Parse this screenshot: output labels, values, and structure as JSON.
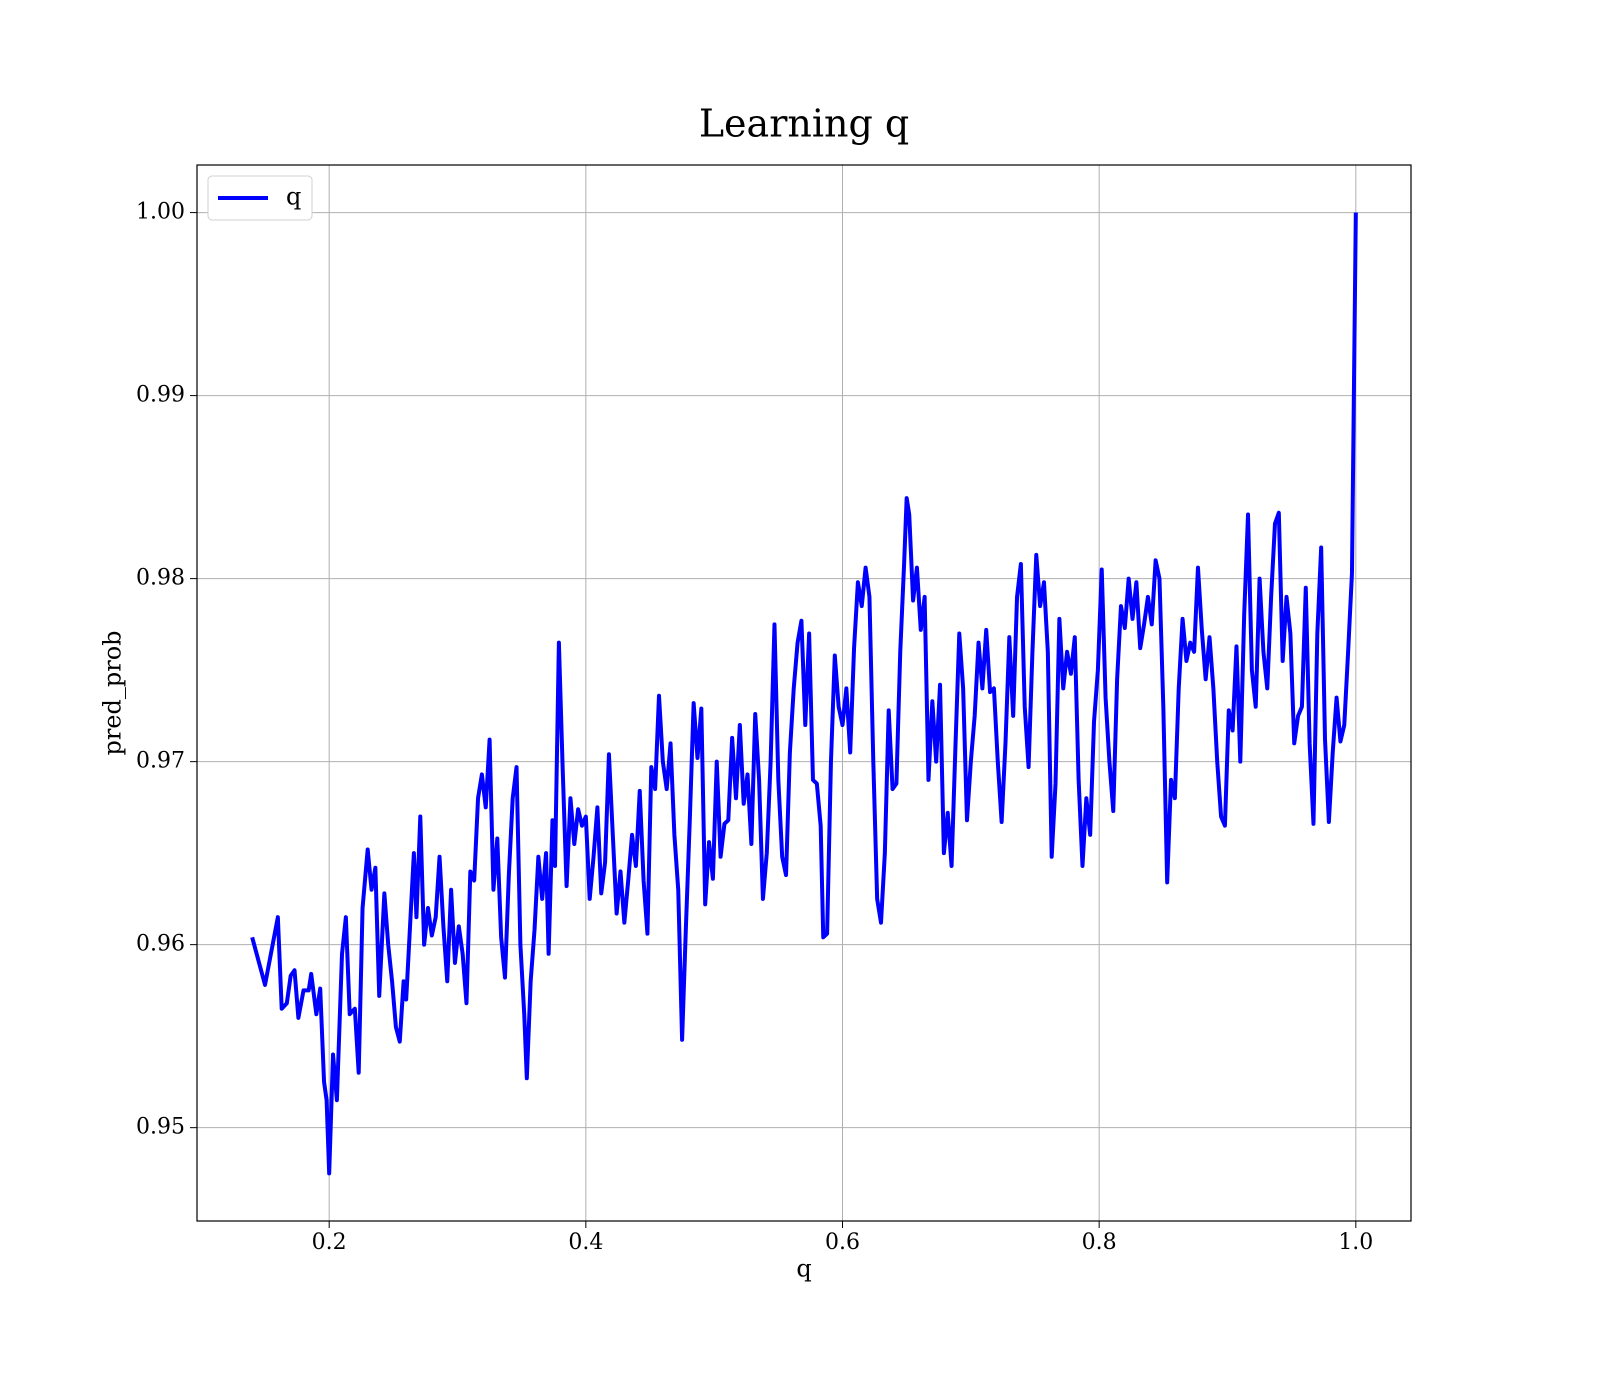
{
  "chart_data": {
    "type": "line",
    "title": "Learning q",
    "xlabel": "q",
    "ylabel": "pred_prob",
    "legend": "upper left",
    "grid": true,
    "xlim": [
      0.097,
      1.043
    ],
    "ylim": [
      0.9449,
      1.0026
    ],
    "xticks": [
      0.2,
      0.4,
      0.6,
      0.8,
      {
        "value": 1,
        "label": "1.0"
      }
    ],
    "yticks": [
      0.95,
      0.96,
      0.97,
      0.98,
      0.99,
      {
        "value": 1,
        "label": "1.00"
      }
    ],
    "x": [
      0.14,
      0.15,
      0.16,
      0.163,
      0.167,
      0.17,
      0.173,
      0.176,
      0.18,
      0.184,
      0.186,
      0.19,
      0.193,
      0.196,
      0.198,
      0.2,
      0.203,
      0.206,
      0.21,
      0.213,
      0.216,
      0.22,
      0.223,
      0.226,
      0.23,
      0.233,
      0.236,
      0.239,
      0.243,
      0.246,
      0.249,
      0.252,
      0.255,
      0.258,
      0.26,
      0.263,
      0.266,
      0.268,
      0.271,
      0.274,
      0.277,
      0.28,
      0.283,
      0.286,
      0.289,
      0.292,
      0.295,
      0.298,
      0.301,
      0.304,
      0.307,
      0.31,
      0.313,
      0.316,
      0.319,
      0.322,
      0.325,
      0.328,
      0.331,
      0.334,
      0.337,
      0.34,
      0.343,
      0.346,
      0.349,
      0.352,
      0.354,
      0.357,
      0.36,
      0.363,
      0.366,
      0.369,
      0.371,
      0.374,
      0.376,
      0.379,
      0.382,
      0.385,
      0.388,
      0.391,
      0.394,
      0.397,
      0.4,
      0.403,
      0.406,
      0.409,
      0.412,
      0.415,
      0.418,
      0.421,
      0.424,
      0.427,
      0.43,
      0.433,
      0.436,
      0.439,
      0.442,
      0.445,
      0.448,
      0.451,
      0.454,
      0.457,
      0.46,
      0.463,
      0.466,
      0.469,
      0.472,
      0.475,
      0.478,
      0.481,
      0.484,
      0.487,
      0.49,
      0.493,
      0.496,
      0.499,
      0.502,
      0.505,
      0.508,
      0.511,
      0.514,
      0.517,
      0.52,
      0.523,
      0.526,
      0.529,
      0.532,
      0.535,
      0.538,
      0.541,
      0.544,
      0.547,
      0.55,
      0.553,
      0.556,
      0.559,
      0.562,
      0.565,
      0.568,
      0.571,
      0.574,
      0.577,
      0.58,
      0.583,
      0.585,
      0.588,
      0.591,
      0.594,
      0.597,
      0.6,
      0.603,
      0.606,
      0.609,
      0.612,
      0.615,
      0.618,
      0.621,
      0.624,
      0.627,
      0.63,
      0.633,
      0.636,
      0.639,
      0.642,
      0.645,
      0.648,
      0.65,
      0.652,
      0.655,
      0.658,
      0.661,
      0.664,
      0.667,
      0.67,
      0.673,
      0.676,
      0.679,
      0.682,
      0.685,
      0.688,
      0.691,
      0.694,
      0.697,
      0.7,
      0.703,
      0.706,
      0.709,
      0.712,
      0.715,
      0.718,
      0.721,
      0.724,
      0.727,
      0.73,
      0.733,
      0.736,
      0.739,
      0.742,
      0.745,
      0.748,
      0.751,
      0.754,
      0.757,
      0.76,
      0.763,
      0.766,
      0.769,
      0.772,
      0.775,
      0.778,
      0.781,
      0.784,
      0.787,
      0.79,
      0.793,
      0.796,
      0.799,
      0.802,
      0.805,
      0.808,
      0.811,
      0.814,
      0.817,
      0.82,
      0.823,
      0.826,
      0.829,
      0.832,
      0.835,
      0.838,
      0.841,
      0.844,
      0.847,
      0.85,
      0.853,
      0.856,
      0.859,
      0.862,
      0.865,
      0.868,
      0.871,
      0.874,
      0.877,
      0.88,
      0.883,
      0.886,
      0.889,
      0.892,
      0.895,
      0.898,
      0.901,
      0.904,
      0.907,
      0.91,
      0.913,
      0.916,
      0.919,
      0.922,
      0.925,
      0.928,
      0.931,
      0.934,
      0.937,
      0.94,
      0.943,
      0.946,
      0.949,
      0.952,
      0.955,
      0.958,
      0.961,
      0.964,
      0.967,
      0.97,
      0.973,
      0.976,
      0.979,
      0.982,
      0.985,
      0.988,
      0.991,
      0.994,
      0.997,
      1.0
    ],
    "series": [
      {
        "name": "q",
        "color": "#0000ff",
        "values": [
          0.9604,
          0.9578,
          0.9615,
          0.9565,
          0.9568,
          0.9583,
          0.9586,
          0.956,
          0.9575,
          0.9575,
          0.9584,
          0.9562,
          0.9576,
          0.9525,
          0.9515,
          0.9475,
          0.954,
          0.9515,
          0.9595,
          0.9615,
          0.9562,
          0.9565,
          0.953,
          0.962,
          0.9652,
          0.963,
          0.9642,
          0.9572,
          0.9628,
          0.96,
          0.958,
          0.9555,
          0.9547,
          0.958,
          0.957,
          0.961,
          0.965,
          0.9615,
          0.967,
          0.96,
          0.962,
          0.9605,
          0.9615,
          0.9648,
          0.961,
          0.958,
          0.963,
          0.959,
          0.961,
          0.9595,
          0.9568,
          0.964,
          0.9635,
          0.968,
          0.9693,
          0.9675,
          0.9712,
          0.963,
          0.9658,
          0.9604,
          0.9582,
          0.9638,
          0.968,
          0.9697,
          0.96,
          0.9562,
          0.9527,
          0.958,
          0.9608,
          0.9648,
          0.9625,
          0.965,
          0.9595,
          0.9668,
          0.9643,
          0.9765,
          0.9695,
          0.9632,
          0.968,
          0.9655,
          0.9674,
          0.9665,
          0.967,
          0.9625,
          0.9648,
          0.9675,
          0.9628,
          0.9645,
          0.9704,
          0.966,
          0.9617,
          0.964,
          0.9612,
          0.9635,
          0.966,
          0.9643,
          0.9684,
          0.9635,
          0.9606,
          0.9697,
          0.9685,
          0.9736,
          0.97,
          0.9685,
          0.971,
          0.966,
          0.963,
          0.9548,
          0.961,
          0.9668,
          0.9732,
          0.9702,
          0.9729,
          0.9622,
          0.9656,
          0.9636,
          0.97,
          0.9648,
          0.9666,
          0.9668,
          0.9713,
          0.968,
          0.972,
          0.9677,
          0.9693,
          0.9655,
          0.9726,
          0.969,
          0.9625,
          0.965,
          0.97,
          0.9775,
          0.969,
          0.9648,
          0.9638,
          0.9705,
          0.974,
          0.9765,
          0.9777,
          0.972,
          0.977,
          0.969,
          0.9688,
          0.9665,
          0.9604,
          0.9606,
          0.97,
          0.9758,
          0.973,
          0.972,
          0.974,
          0.9705,
          0.9762,
          0.9798,
          0.9785,
          0.9806,
          0.979,
          0.97,
          0.9625,
          0.9612,
          0.965,
          0.9728,
          0.9685,
          0.9688,
          0.976,
          0.9808,
          0.9844,
          0.9835,
          0.9788,
          0.9806,
          0.9772,
          0.979,
          0.969,
          0.9733,
          0.97,
          0.9742,
          0.965,
          0.9672,
          0.9643,
          0.9708,
          0.977,
          0.974,
          0.9668,
          0.97,
          0.9725,
          0.9765,
          0.974,
          0.9772,
          0.9738,
          0.974,
          0.97,
          0.9667,
          0.971,
          0.9768,
          0.9725,
          0.979,
          0.9808,
          0.973,
          0.9697,
          0.976,
          0.9813,
          0.9785,
          0.9798,
          0.976,
          0.9648,
          0.9688,
          0.9778,
          0.974,
          0.976,
          0.9748,
          0.9768,
          0.969,
          0.9643,
          0.968,
          0.966,
          0.9722,
          0.975,
          0.9805,
          0.9735,
          0.97,
          0.9673,
          0.9745,
          0.9785,
          0.9773,
          0.98,
          0.9778,
          0.9798,
          0.9762,
          0.9775,
          0.979,
          0.9775,
          0.981,
          0.98,
          0.973,
          0.9634,
          0.969,
          0.968,
          0.974,
          0.9778,
          0.9755,
          0.9765,
          0.976,
          0.9806,
          0.9772,
          0.9745,
          0.9768,
          0.974,
          0.97,
          0.967,
          0.9665,
          0.9728,
          0.9717,
          0.9763,
          0.97,
          0.978,
          0.9835,
          0.975,
          0.973,
          0.98,
          0.976,
          0.974,
          0.979,
          0.983,
          0.9836,
          0.9755,
          0.979,
          0.977,
          0.971,
          0.9725,
          0.973,
          0.9795,
          0.971,
          0.9666,
          0.977,
          0.9817,
          0.9712,
          0.9667,
          0.9705,
          0.9735,
          0.9711,
          0.972,
          0.976,
          0.9803,
          1.0
        ]
      }
    ]
  }
}
